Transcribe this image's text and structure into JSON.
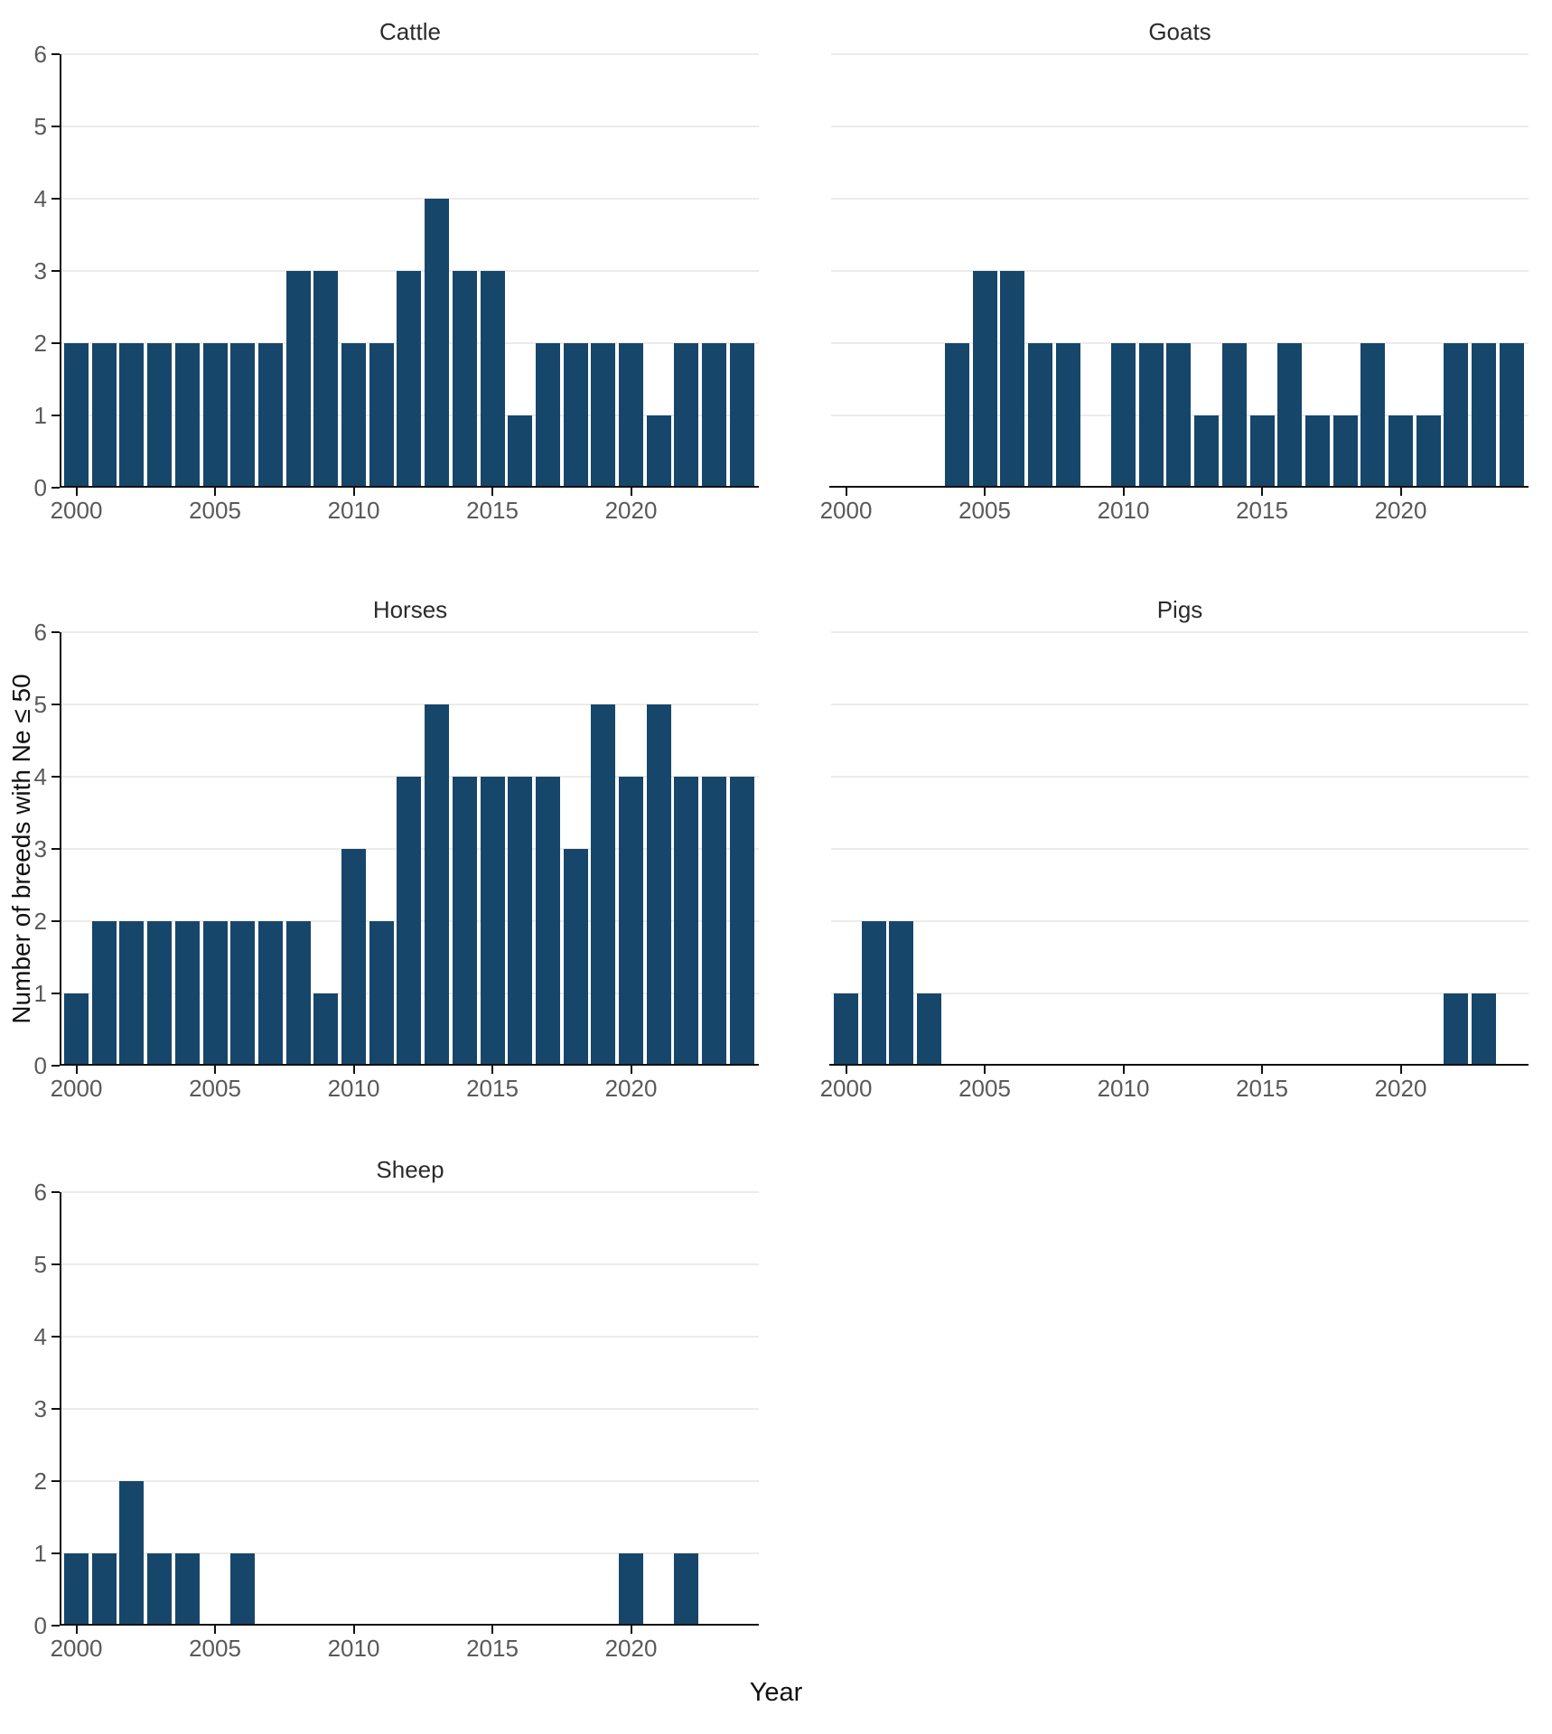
{
  "figure": {
    "xlabel": "Year",
    "ylabel": "Number of breeds with Ne ≤ 50"
  },
  "axes": {
    "x_ticks": [
      2000,
      2005,
      2010,
      2015,
      2020
    ],
    "y_ticks": [
      0,
      1,
      2,
      3,
      4,
      5,
      6
    ],
    "x_range": [
      2000,
      2024
    ],
    "y_range": [
      0,
      6
    ],
    "grid": "horizontal-only",
    "legend": "none"
  },
  "colors": {
    "bar": "#17466B",
    "grid": "#EBEBEB",
    "axis": "#111111",
    "tick_label": "#595959",
    "title": "#2B2B2B",
    "background": "#FFFFFF"
  },
  "chart_data": [
    {
      "type": "bar",
      "title": "Cattle",
      "row": 0,
      "col": 0,
      "show_y_tick_labels": true,
      "ylim": [
        0,
        6
      ],
      "categories": [
        2000,
        2001,
        2002,
        2003,
        2004,
        2005,
        2006,
        2007,
        2008,
        2009,
        2010,
        2011,
        2012,
        2013,
        2014,
        2015,
        2016,
        2017,
        2018,
        2019,
        2020,
        2021,
        2022,
        2023,
        2024
      ],
      "values": [
        2,
        2,
        2,
        2,
        2,
        2,
        2,
        2,
        3,
        3,
        2,
        2,
        3,
        4,
        3,
        3,
        1,
        2,
        2,
        2,
        2,
        1,
        2,
        2,
        2
      ]
    },
    {
      "type": "bar",
      "title": "Goats",
      "row": 0,
      "col": 1,
      "show_y_tick_labels": false,
      "ylim": [
        0,
        6
      ],
      "categories": [
        2000,
        2001,
        2002,
        2003,
        2004,
        2005,
        2006,
        2007,
        2008,
        2009,
        2010,
        2011,
        2012,
        2013,
        2014,
        2015,
        2016,
        2017,
        2018,
        2019,
        2020,
        2021,
        2022,
        2023,
        2024
      ],
      "values": [
        0,
        0,
        0,
        0,
        2,
        3,
        3,
        2,
        2,
        0,
        2,
        2,
        2,
        1,
        2,
        1,
        2,
        1,
        1,
        2,
        1,
        1,
        2,
        2,
        2
      ]
    },
    {
      "type": "bar",
      "title": "Horses",
      "row": 1,
      "col": 0,
      "show_y_tick_labels": true,
      "ylim": [
        0,
        6
      ],
      "categories": [
        2000,
        2001,
        2002,
        2003,
        2004,
        2005,
        2006,
        2007,
        2008,
        2009,
        2010,
        2011,
        2012,
        2013,
        2014,
        2015,
        2016,
        2017,
        2018,
        2019,
        2020,
        2021,
        2022,
        2023,
        2024
      ],
      "values": [
        1,
        2,
        2,
        2,
        2,
        2,
        2,
        2,
        2,
        1,
        3,
        2,
        4,
        5,
        4,
        4,
        4,
        4,
        3,
        5,
        4,
        5,
        4,
        4,
        4
      ]
    },
    {
      "type": "bar",
      "title": "Pigs",
      "row": 1,
      "col": 1,
      "show_y_tick_labels": false,
      "ylim": [
        0,
        6
      ],
      "categories": [
        2000,
        2001,
        2002,
        2003,
        2004,
        2005,
        2006,
        2007,
        2008,
        2009,
        2010,
        2011,
        2012,
        2013,
        2014,
        2015,
        2016,
        2017,
        2018,
        2019,
        2020,
        2021,
        2022,
        2023,
        2024
      ],
      "values": [
        1,
        2,
        2,
        1,
        0,
        0,
        0,
        0,
        0,
        0,
        0,
        0,
        0,
        0,
        0,
        0,
        0,
        0,
        0,
        0,
        0,
        0,
        1,
        1,
        0
      ]
    },
    {
      "type": "bar",
      "title": "Sheep",
      "row": 2,
      "col": 0,
      "show_y_tick_labels": true,
      "ylim": [
        0,
        6
      ],
      "categories": [
        2000,
        2001,
        2002,
        2003,
        2004,
        2005,
        2006,
        2007,
        2008,
        2009,
        2010,
        2011,
        2012,
        2013,
        2014,
        2015,
        2016,
        2017,
        2018,
        2019,
        2020,
        2021,
        2022,
        2023,
        2024
      ],
      "values": [
        1,
        1,
        2,
        1,
        1,
        0,
        1,
        0,
        0,
        0,
        0,
        0,
        0,
        0,
        0,
        0,
        0,
        0,
        0,
        0,
        1,
        0,
        1,
        0,
        0
      ]
    }
  ]
}
